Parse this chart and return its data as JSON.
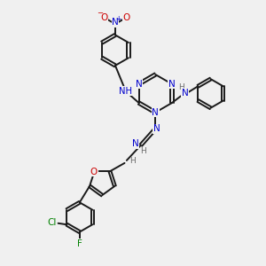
{
  "bg_color": "#f0f0f0",
  "bond_color": "#1a1a1a",
  "N_color": "#0000cd",
  "O_color": "#cc0000",
  "Cl_color": "#008000",
  "F_color": "#008000",
  "H_color": "#6a6a6a",
  "line_width": 1.4,
  "figsize": [
    3.0,
    3.0
  ],
  "dpi": 100,
  "xlim": [
    0,
    10
  ],
  "ylim": [
    0,
    10
  ]
}
